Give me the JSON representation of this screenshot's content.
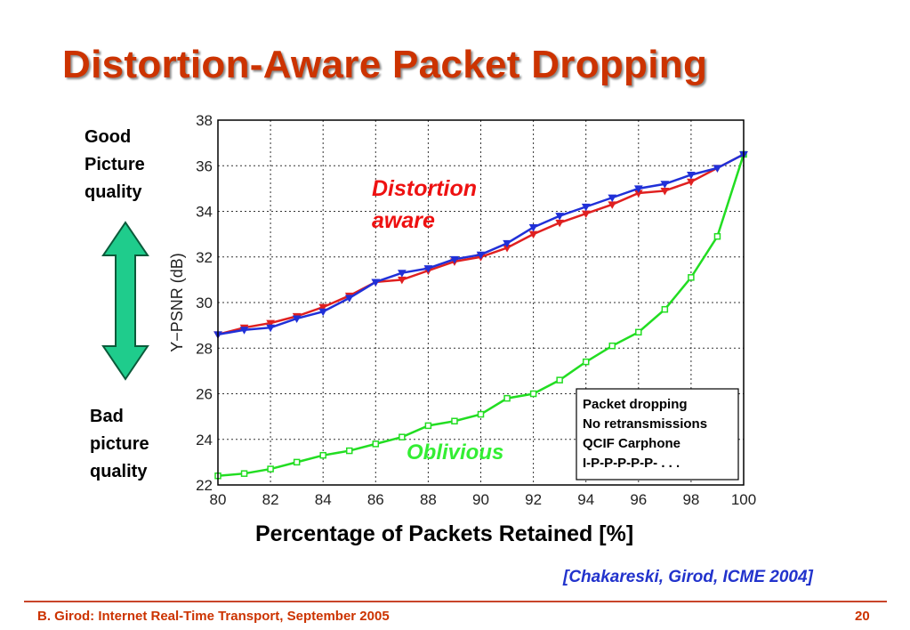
{
  "slide": {
    "title": "Distortion-Aware Packet Dropping",
    "good_label": "Good\nPicture\nquality",
    "bad_label": "Bad\npicture\nquality",
    "citation": "[Chakareski, Girod, ICME 2004]",
    "footer": "B. Girod: Internet Real-Time Transport, September 2005",
    "page_number": "20",
    "arrow_color": "#1fcc8c"
  },
  "chart_data": {
    "type": "line",
    "xlabel": "Percentage of Packets Retained [%]",
    "ylabel": "Y−PSNR (dB)",
    "xlim": [
      80,
      100
    ],
    "ylim": [
      22,
      38
    ],
    "xticks": [
      "80",
      "82",
      "84",
      "86",
      "88",
      "90",
      "92",
      "94",
      "96",
      "98",
      "100"
    ],
    "yticks": [
      "22",
      "24",
      "26",
      "28",
      "30",
      "32",
      "34",
      "36",
      "38"
    ],
    "grid": true,
    "x": [
      80,
      81,
      82,
      83,
      84,
      85,
      86,
      87,
      88,
      89,
      90,
      91,
      92,
      93,
      94,
      95,
      96,
      97,
      98,
      99,
      100
    ],
    "series": [
      {
        "name": "Distortion aware",
        "color": "#e02020",
        "marker": "triangle-down",
        "values": [
          28.6,
          28.9,
          29.1,
          29.4,
          29.8,
          30.3,
          30.9,
          31.0,
          31.4,
          31.8,
          32.0,
          32.4,
          33.0,
          33.5,
          33.9,
          34.3,
          34.8,
          34.9,
          35.3,
          35.9,
          36.5
        ]
      },
      {
        "name": "",
        "color": "#2030d8",
        "marker": "triangle-down",
        "values": [
          28.6,
          28.8,
          28.9,
          29.3,
          29.6,
          30.2,
          30.9,
          31.3,
          31.5,
          31.9,
          32.1,
          32.6,
          33.3,
          33.8,
          34.2,
          34.6,
          35.0,
          35.2,
          35.6,
          35.9,
          36.5
        ]
      },
      {
        "name": "Oblivious",
        "color": "#22dd22",
        "marker": "square",
        "values": [
          22.4,
          22.5,
          22.7,
          23.0,
          23.3,
          23.5,
          23.8,
          24.1,
          24.6,
          24.8,
          25.1,
          25.8,
          26.0,
          26.6,
          27.4,
          28.1,
          28.7,
          29.7,
          31.1,
          32.9,
          36.5
        ]
      }
    ],
    "annotations": {
      "distortion_aware": "Distortion\naware",
      "distortion_aware_color": "#ee1111",
      "oblivious": "Oblivious",
      "oblivious_color": "#33ee33",
      "infobox": [
        "Packet dropping",
        "No retransmissions",
        "QCIF Carphone",
        "I-P-P-P-P-P- . . ."
      ]
    }
  }
}
